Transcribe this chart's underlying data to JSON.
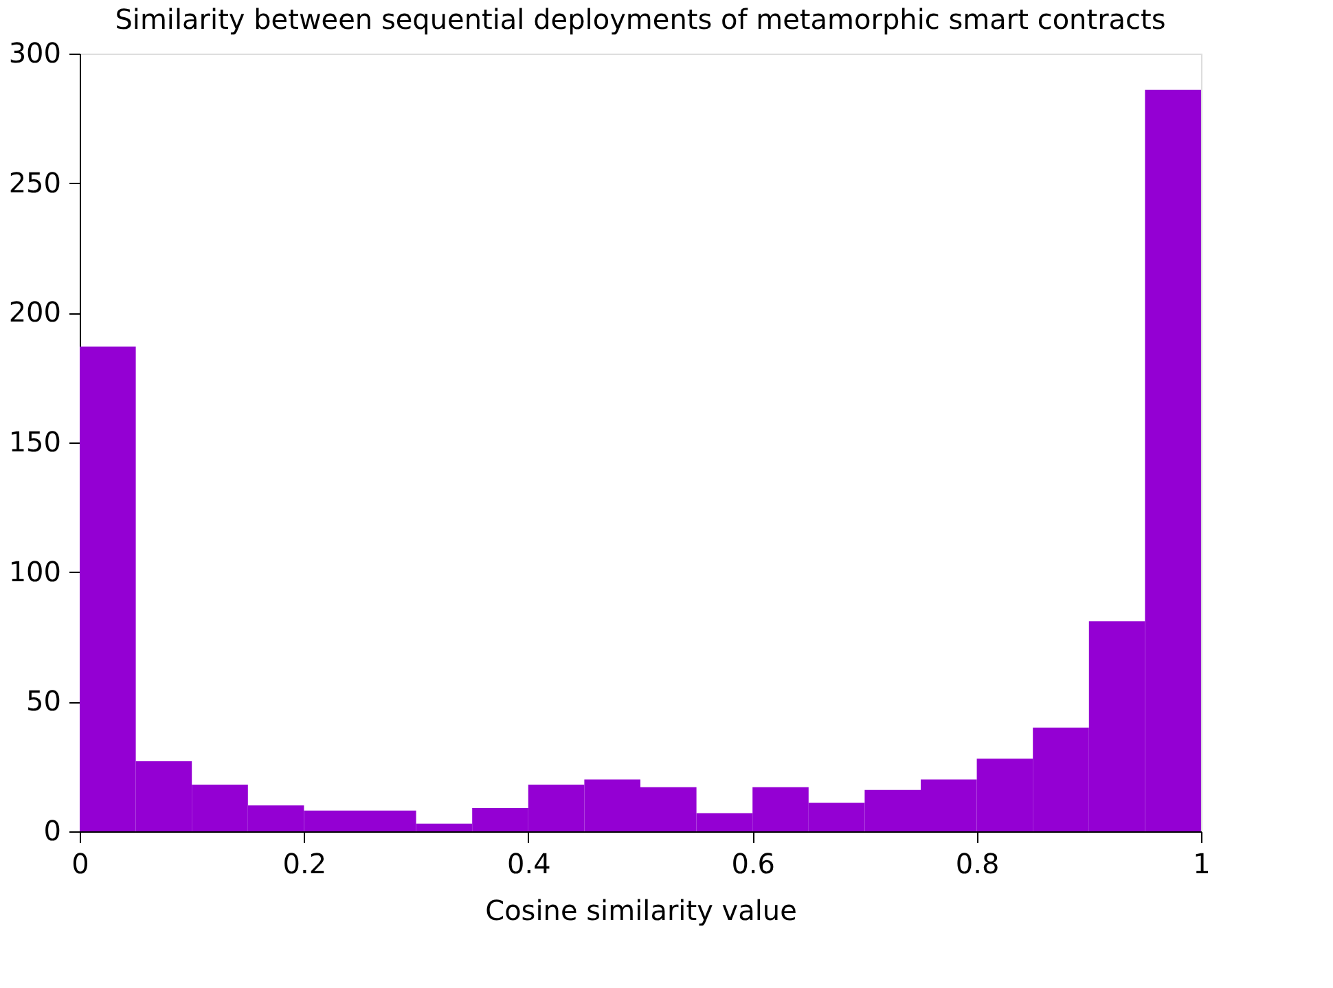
{
  "chart_data": {
    "type": "histogram",
    "title": "Similarity between sequential deployments of metamorphic smart contracts",
    "xlabel": "Cosine similarity value",
    "bins": [
      0,
      0.05,
      0.1,
      0.15,
      0.2,
      0.25,
      0.3,
      0.35,
      0.4,
      0.45,
      0.5,
      0.55,
      0.6,
      0.65,
      0.7,
      0.75,
      0.8,
      0.85,
      0.9,
      0.95,
      1
    ],
    "values": [
      187,
      27,
      18,
      10,
      8,
      8,
      3,
      9,
      18,
      20,
      17,
      7,
      17,
      11,
      16,
      20,
      28,
      40,
      81,
      286
    ],
    "color": "#9400d3",
    "xlim": [
      0,
      1
    ],
    "xticks": [
      0,
      0.2,
      0.4,
      0.6,
      0.8,
      1
    ],
    "ylim": [
      0,
      300
    ],
    "yticks": [
      0,
      50,
      100,
      150,
      200,
      250,
      300
    ],
    "grid": false
  }
}
